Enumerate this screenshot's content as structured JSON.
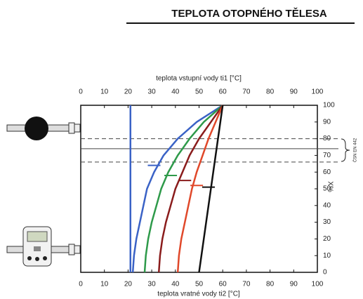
{
  "title": "TEPLOTA OTOPNÉHO TĚLESA",
  "chart_data": {
    "type": "line",
    "x_label_top": "teplota vstupní vody ti1 [°C]",
    "x_label_bottom": "teplota vratné vody ti2 [°C]",
    "y_label": "X%",
    "band_label": "ČSN EN 442",
    "xlim": [
      0,
      100
    ],
    "ylim": [
      0,
      100
    ],
    "xticks": [
      0,
      10,
      20,
      30,
      40,
      50,
      60,
      70,
      80,
      90,
      100
    ],
    "yticks": [
      0,
      10,
      20,
      30,
      40,
      50,
      60,
      70,
      80,
      90,
      100
    ],
    "hlines": [
      {
        "value": 80,
        "style": "dashed"
      },
      {
        "value": 74,
        "style": "solid"
      },
      {
        "value": 66,
        "style": "dashed"
      }
    ],
    "series": [
      {
        "color": "#3a62c6",
        "x": [
          21,
          21
        ],
        "values": [
          0,
          100
        ]
      },
      {
        "color": "#3a62c6",
        "x": [
          22,
          22.5,
          23.5,
          25,
          26.5,
          28,
          31,
          35,
          41,
          49,
          60
        ],
        "values": [
          0,
          10,
          20,
          30,
          40,
          50,
          60,
          70,
          80,
          90,
          100
        ],
        "marker_x": 31,
        "marker_y": 64
      },
      {
        "color": "#2e9a4a",
        "x": [
          27,
          27.5,
          28.5,
          30,
          32,
          34,
          37,
          41,
          46,
          52,
          60
        ],
        "values": [
          0,
          10,
          20,
          30,
          40,
          50,
          60,
          70,
          80,
          90,
          100
        ],
        "marker_x": 38,
        "marker_y": 58
      },
      {
        "color": "#8a1c1c",
        "x": [
          33,
          33.5,
          34.5,
          36,
          38,
          40,
          43,
          46,
          50,
          55,
          60
        ],
        "values": [
          0,
          10,
          20,
          30,
          40,
          50,
          60,
          70,
          80,
          90,
          100
        ],
        "marker_x": 44,
        "marker_y": 55
      },
      {
        "color": "#e0482a",
        "x": [
          41,
          41.5,
          42.5,
          44,
          45.5,
          47,
          49,
          51.5,
          54,
          57,
          60
        ],
        "values": [
          0,
          10,
          20,
          30,
          40,
          50,
          60,
          70,
          80,
          90,
          100
        ],
        "marker_x": 49,
        "marker_y": 52
      },
      {
        "color": "#111111",
        "x": [
          50,
          51,
          52,
          53,
          54,
          55,
          56,
          57,
          58,
          59,
          60
        ],
        "values": [
          0,
          10,
          20,
          30,
          40,
          50,
          60,
          70,
          80,
          90,
          100
        ],
        "marker_x": 54,
        "marker_y": 51
      }
    ]
  }
}
